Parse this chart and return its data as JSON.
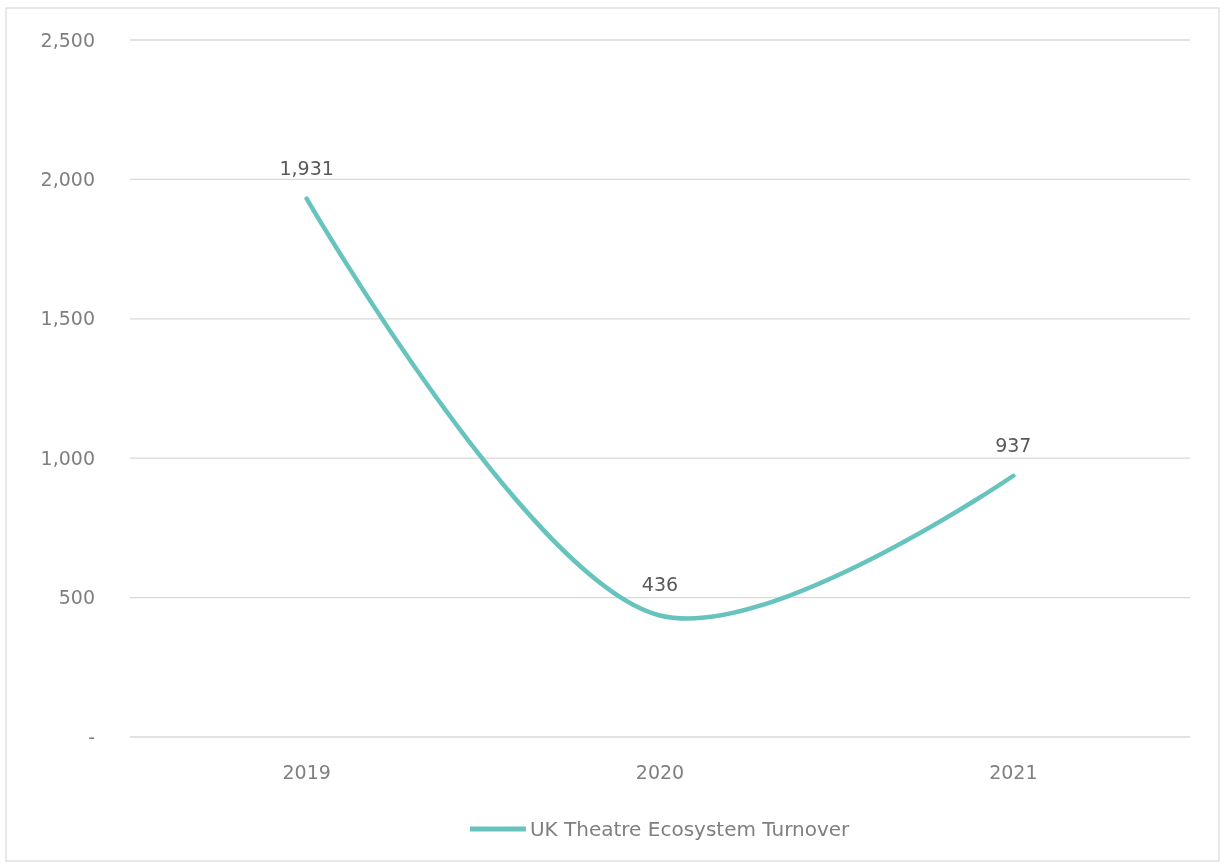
{
  "chart_data": {
    "type": "line",
    "categories": [
      "2019",
      "2020",
      "2021"
    ],
    "series": [
      {
        "name": "UK Theatre Ecosystem Turnover",
        "color": "#67c3bd",
        "values": [
          1931,
          436,
          937
        ],
        "value_labels": [
          "1,931",
          "436",
          "937"
        ]
      }
    ],
    "ylim": [
      0,
      2500
    ],
    "yticks": [
      {
        "value": 0,
        "label": "-"
      },
      500,
      {
        "value": 1000,
        "label": "1,000"
      },
      {
        "value": 1500,
        "label": "1,500"
      },
      {
        "value": 2000,
        "label": "2,000"
      },
      {
        "value": 2500,
        "label": "2,500"
      }
    ],
    "grid": "y",
    "legend": "bottom"
  }
}
